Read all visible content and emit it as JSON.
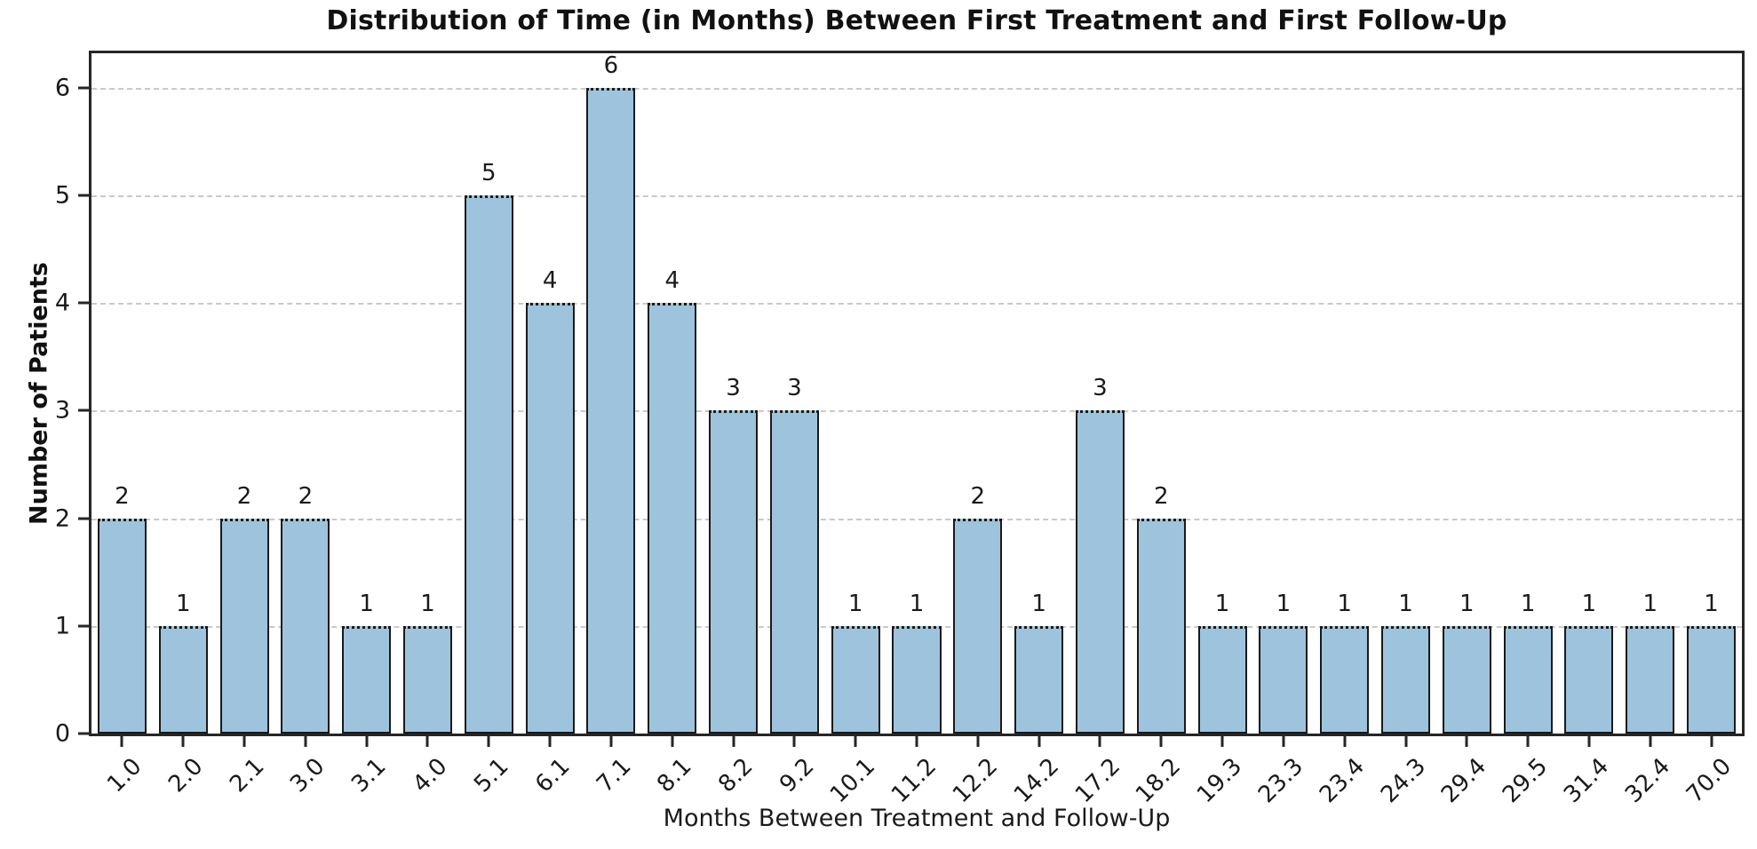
{
  "chart_data": {
    "type": "bar",
    "title": "Distribution of Time (in Months) Between First Treatment and First Follow-Up",
    "xlabel": "Months Between Treatment and Follow-Up",
    "ylabel": "Number of Patients",
    "categories": [
      "1.0",
      "2.0",
      "2.1",
      "3.0",
      "3.1",
      "4.0",
      "5.1",
      "6.1",
      "7.1",
      "8.1",
      "8.2",
      "9.2",
      "10.1",
      "11.2",
      "12.2",
      "14.2",
      "17.2",
      "18.2",
      "19.3",
      "23.3",
      "23.4",
      "24.3",
      "29.4",
      "29.5",
      "31.4",
      "32.4",
      "70.0"
    ],
    "values": [
      2,
      1,
      2,
      2,
      1,
      1,
      5,
      4,
      6,
      4,
      3,
      3,
      1,
      1,
      2,
      1,
      3,
      2,
      1,
      1,
      1,
      1,
      1,
      1,
      1,
      1,
      1
    ],
    "bar_value_labels": [
      "2",
      "1",
      "2",
      "2",
      "1",
      "1",
      "5",
      "4",
      "6",
      "4",
      "3",
      "3",
      "1",
      "1",
      "2",
      "1",
      "3",
      "2",
      "1",
      "1",
      "1",
      "1",
      "1",
      "1",
      "1",
      "1",
      "1"
    ],
    "yticks": [
      0,
      1,
      2,
      3,
      4,
      5,
      6
    ],
    "ytick_labels": [
      "0",
      "1",
      "2",
      "3",
      "4",
      "5",
      "6"
    ],
    "ylim": [
      0,
      6.32
    ],
    "grid": "horizontal-dashed",
    "legend": "none",
    "colors": {
      "bar_fill": "#9dc4dc",
      "bar_edge": "#1a1a1a",
      "grid": "#c9c9c9",
      "spine": "#262626",
      "text": "#1a1a1a"
    }
  }
}
